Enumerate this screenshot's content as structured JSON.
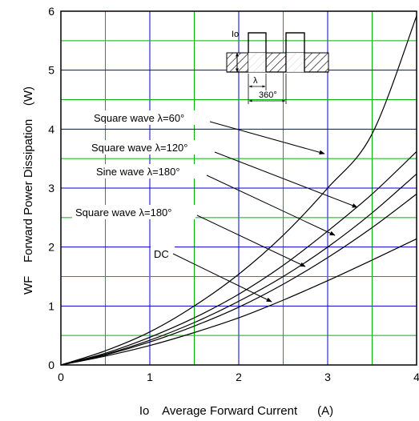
{
  "chart_data": {
    "type": "line",
    "title": "",
    "xlabel": "Io    Average Forward Current      (A)",
    "ylabel": "WF    Forward Power Dissipation    (W)",
    "xlim": [
      0,
      4
    ],
    "ylim": [
      0,
      6
    ],
    "x_ticks": [
      "0",
      "1",
      "2",
      "3",
      "4"
    ],
    "y_ticks": [
      "0",
      "1",
      "2",
      "3",
      "4",
      "5",
      "6"
    ],
    "grid": true,
    "colors": {
      "major_grid": "#0000cc",
      "minor_grid": "#00b400",
      "curve": "#000000",
      "frame": "#000000"
    },
    "series": [
      {
        "name": "Square wave λ=60°",
        "x": [
          0,
          0.5,
          1,
          1.5,
          2,
          2.5,
          3,
          3.5,
          4
        ],
        "y": [
          0,
          0.24,
          0.56,
          1.0,
          1.54,
          2.2,
          3.0,
          3.92,
          5.92
        ]
      },
      {
        "name": "Square wave λ=120°",
        "x": [
          0,
          0.5,
          1,
          1.5,
          2,
          2.5,
          3,
          3.5,
          4
        ],
        "y": [
          0,
          0.2,
          0.47,
          0.8,
          1.2,
          1.69,
          2.27,
          2.9,
          3.62
        ]
      },
      {
        "name": "Sine wave λ=180°",
        "x": [
          0,
          0.5,
          1,
          1.5,
          2,
          2.5,
          3,
          3.5,
          4
        ],
        "y": [
          0,
          0.18,
          0.42,
          0.72,
          1.08,
          1.5,
          2.0,
          2.58,
          3.24
        ]
      },
      {
        "name": "Square wave λ=180°",
        "x": [
          0,
          0.5,
          1,
          1.5,
          2,
          2.5,
          3,
          3.5,
          4
        ],
        "y": [
          0,
          0.17,
          0.39,
          0.66,
          0.98,
          1.37,
          1.82,
          2.33,
          2.9
        ]
      },
      {
        "name": "DC",
        "x": [
          0,
          0.5,
          1,
          1.5,
          2,
          2.5,
          3,
          3.5,
          4
        ],
        "y": [
          0,
          0.15,
          0.33,
          0.55,
          0.8,
          1.1,
          1.43,
          1.78,
          2.14
        ]
      }
    ],
    "inset": {
      "io_label": "Io",
      "lambda_label": "λ",
      "period_label": "360°"
    }
  }
}
